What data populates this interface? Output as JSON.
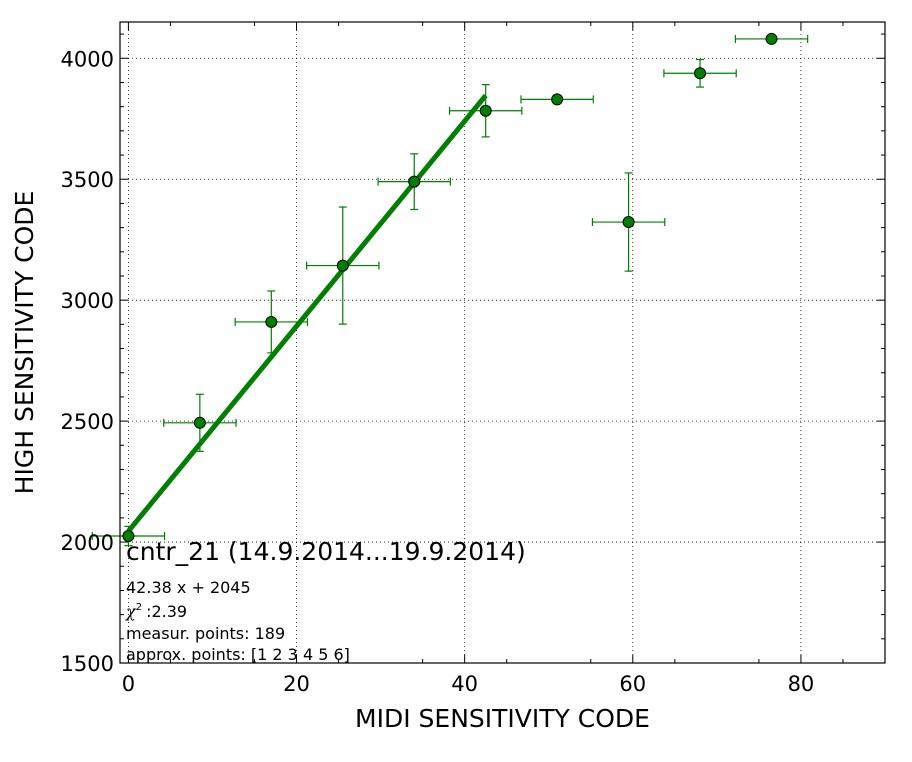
{
  "chart_data": {
    "type": "scatter",
    "xlabel": "MIDI SENSITIVITY CODE",
    "ylabel": "HIGH SENSITIVITY CODE",
    "xlim": [
      -1,
      90
    ],
    "ylim": [
      1500,
      4150
    ],
    "xticks": [
      0,
      20,
      40,
      60,
      80
    ],
    "yticks": [
      1500,
      2000,
      2500,
      3000,
      3500,
      4000
    ],
    "grid": true,
    "points": [
      {
        "x": 0,
        "y": 2025,
        "xerr": 4.3,
        "yerr": 40
      },
      {
        "x": 8.5,
        "y": 2493,
        "xerr": 4.3,
        "yerr": 118
      },
      {
        "x": 17,
        "y": 2910,
        "xerr": 4.3,
        "yerr": 128
      },
      {
        "x": 25.5,
        "y": 3143,
        "xerr": 4.3,
        "yerr": 242
      },
      {
        "x": 34,
        "y": 3490,
        "xerr": 4.3,
        "yerr": 115
      },
      {
        "x": 42.5,
        "y": 3783,
        "xerr": 4.3,
        "yerr": 108
      },
      {
        "x": 51,
        "y": 3830,
        "xerr": 4.3,
        "yerr": 0
      },
      {
        "x": 59.5,
        "y": 3323,
        "xerr": 4.3,
        "yerr": 203
      },
      {
        "x": 68,
        "y": 3938,
        "xerr": 4.3,
        "yerr": 57
      },
      {
        "x": 76.5,
        "y": 4080,
        "xerr": 4.3,
        "yerr": 0
      }
    ],
    "fit": {
      "slope": 42.38,
      "intercept": 2045,
      "x_range": [
        0,
        42.5
      ]
    },
    "colors": {
      "marker": "#008000",
      "line": "#008000",
      "errorbar": "#008000"
    },
    "annotations": {
      "title": "cntr_21 (14.9.2014...19.9.2014)",
      "equation": "42.38 x + 2045",
      "chi_symbol": "χ",
      "chi_value": ":2.39",
      "measur_points": "measur. points: 189",
      "approx_points": "approx. points: [1 2 3 4 5 6]"
    }
  }
}
